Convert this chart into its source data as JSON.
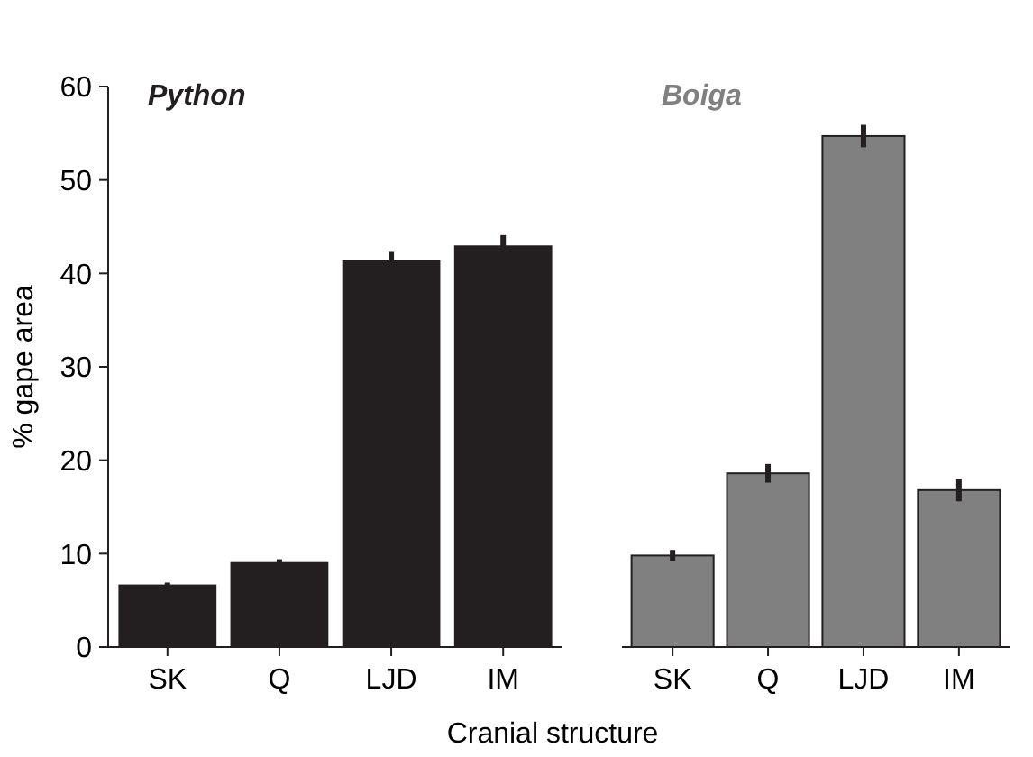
{
  "chart_data": [
    {
      "type": "bar",
      "title": "Python",
      "ylabel": "% gape area",
      "xlabel": "Cranial structure",
      "categories": [
        "SK",
        "Q",
        "LJD",
        "IM"
      ],
      "values": [
        6.6,
        9.0,
        41.3,
        42.9
      ],
      "errors": [
        0.3,
        0.4,
        1.0,
        1.2
      ],
      "color": "#231f20",
      "ylim": [
        0,
        60
      ],
      "yticks": [
        0,
        10,
        20,
        30,
        40,
        50,
        60
      ]
    },
    {
      "type": "bar",
      "title": "Boiga",
      "categories": [
        "SK",
        "Q",
        "LJD",
        "IM"
      ],
      "values": [
        9.8,
        18.6,
        54.7,
        16.8
      ],
      "errors": [
        0.6,
        1.0,
        1.2,
        1.2
      ],
      "color": "#808080",
      "ylim": [
        0,
        60
      ],
      "yticks": [
        0,
        10,
        20,
        30,
        40,
        50,
        60
      ],
      "tick_labels": "x"
    }
  ]
}
